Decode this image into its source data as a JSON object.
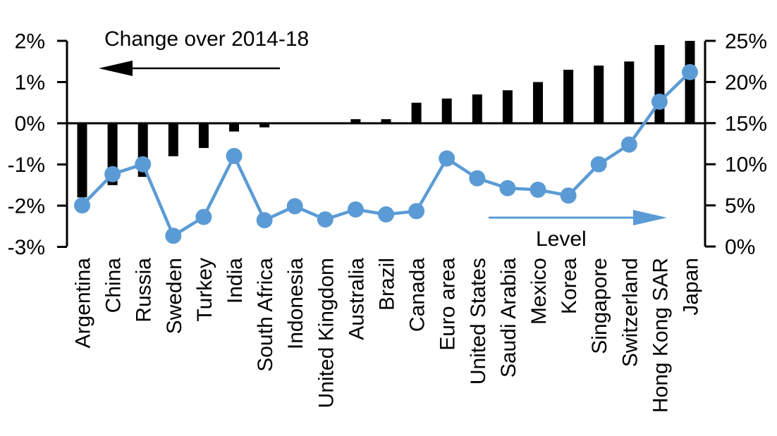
{
  "chart_data": {
    "type": "bar",
    "subtype": "combo-bar-line-dual-axis",
    "title": "",
    "categories": [
      "Argentina",
      "China",
      "Russia",
      "Sweden",
      "Turkey",
      "India",
      "South Africa",
      "Indonesia",
      "United Kingdom",
      "Australia",
      "Brazil",
      "Canada",
      "Euro area",
      "United States",
      "Saudi Arabia",
      "Mexico",
      "Korea",
      "Singapore",
      "Switzerland",
      "Hong Kong SAR",
      "Japan"
    ],
    "series": [
      {
        "name": "Change over 2014-18",
        "type": "bar",
        "axis": "left",
        "color": "#000000",
        "values": [
          -1.8,
          -1.5,
          -1.3,
          -0.8,
          -0.6,
          -0.2,
          -0.1,
          0.0,
          0.0,
          0.1,
          0.1,
          0.5,
          0.6,
          0.7,
          0.8,
          1.0,
          1.3,
          1.4,
          1.5,
          1.9,
          2.0
        ]
      },
      {
        "name": "Level",
        "type": "line",
        "axis": "right",
        "color": "#5B9BD5",
        "values": [
          5.0,
          8.8,
          10.0,
          1.3,
          3.6,
          11.0,
          3.2,
          4.9,
          3.3,
          4.5,
          3.9,
          4.3,
          10.7,
          8.3,
          7.1,
          6.9,
          6.2,
          10.0,
          12.4,
          17.6,
          21.2
        ]
      }
    ],
    "left_axis": {
      "tick_labels": [
        "2%",
        "1%",
        "0%",
        "-1%",
        "-2%",
        "-3%"
      ],
      "tick_values": [
        2,
        1,
        0,
        -1,
        -2,
        -3
      ],
      "max": 2,
      "min": -3
    },
    "right_axis": {
      "tick_labels": [
        "25%",
        "20%",
        "15%",
        "10%",
        "5%",
        "0%"
      ],
      "tick_values": [
        25,
        20,
        15,
        10,
        5,
        0
      ],
      "max": 25,
      "min": 0
    },
    "annotations": {
      "bar_arrow_label": "Change over 2014-18",
      "bar_arrow_direction": "left",
      "line_arrow_label": "Level",
      "line_arrow_direction": "right"
    },
    "grid": false,
    "legend_position": "none",
    "colors": {
      "bar": "#000000",
      "line": "#5B9BD5",
      "background": "#ffffff",
      "text": "#000000"
    }
  }
}
